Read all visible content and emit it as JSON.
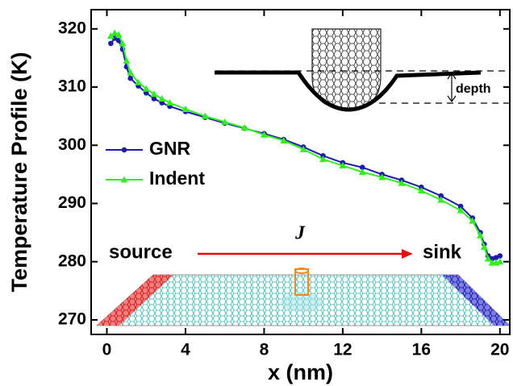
{
  "chart_data": {
    "type": "line",
    "xlabel": "x (nm)",
    "ylabel": "Temperature Profile (K)",
    "x": [
      0.2,
      0.4,
      0.6,
      0.8,
      1.0,
      1.2,
      1.6,
      2.0,
      2.4,
      2.8,
      3.2,
      4,
      5,
      6,
      7,
      8,
      9,
      10,
      11,
      12,
      13,
      14,
      15,
      16,
      17,
      18,
      18.6,
      19,
      19.2,
      19.4,
      19.6,
      19.8,
      20
    ],
    "series": [
      {
        "name": "GNR",
        "color": "#1c1ca8",
        "marker": "circle",
        "values": [
          317.5,
          318.4,
          318,
          316.5,
          313.5,
          311.5,
          310.2,
          309,
          308,
          307.3,
          306.7,
          305.8,
          304.8,
          303.8,
          302.9,
          302,
          301,
          299.7,
          298.2,
          297,
          296.2,
          295,
          294,
          292.8,
          291.3,
          289.5,
          287.5,
          285,
          283,
          281,
          280.5,
          280.7,
          281
        ]
      },
      {
        "name": "Indent",
        "color": "#33ee22",
        "marker": "triangle",
        "values": [
          318.8,
          319.3,
          319,
          317.5,
          314.5,
          312.5,
          310.8,
          309.7,
          308.8,
          308,
          307.3,
          306.2,
          305,
          304,
          303,
          301.8,
          300.8,
          299.3,
          297.6,
          296.5,
          295.4,
          294.5,
          293.5,
          292.2,
          290.6,
          288.8,
          287,
          284.5,
          282.5,
          280.5,
          279.8,
          279.8,
          280
        ]
      }
    ],
    "xlim": [
      -0.8,
      20.5
    ],
    "xticks": [
      0,
      4,
      8,
      12,
      16,
      20
    ],
    "ylim": [
      267.5,
      323.3
    ],
    "yticks": [
      270,
      280,
      290,
      300,
      310,
      320
    ],
    "legend": "left",
    "annotations": [
      "source",
      "J",
      "sink",
      "depth"
    ]
  }
}
